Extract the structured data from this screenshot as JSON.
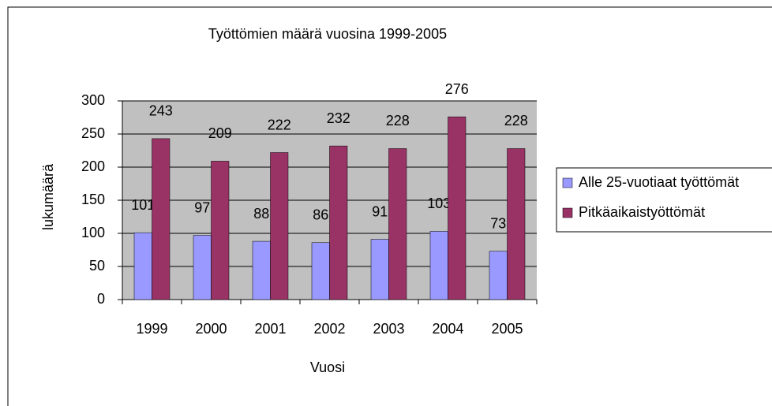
{
  "chart_data": {
    "type": "bar",
    "title": "Työttömien määrä vuosina 1999-2005",
    "x_label": "Vuosi",
    "y_label": "lukumäärä",
    "categories": [
      "1999",
      "2000",
      "2001",
      "2002",
      "2003",
      "2004",
      "2005"
    ],
    "series": [
      {
        "name": "Alle 25-vuotiaat työttömät",
        "color": "#9999ff",
        "values": [
          101,
          97,
          88,
          86,
          91,
          103,
          73
        ]
      },
      {
        "name": "Pitkäaikaistyöttömät",
        "color": "#993366",
        "values": [
          243,
          209,
          222,
          232,
          228,
          276,
          228
        ]
      }
    ],
    "ylim": [
      0,
      300
    ],
    "yticks": [
      0,
      50,
      100,
      150,
      200,
      250,
      300
    ],
    "grid": true,
    "legend": "right"
  }
}
